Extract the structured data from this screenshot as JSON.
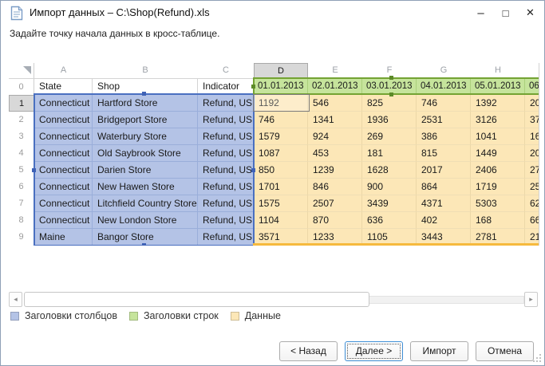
{
  "window": {
    "title": "Импорт данных – C:\\Shop(Refund).xls",
    "subtitle": "Задайте точку начала данных в кросс-таблице.",
    "controls": {
      "minimize": "–",
      "maximize": "□",
      "close": "✕"
    }
  },
  "grid": {
    "column_letters": [
      "A",
      "B",
      "C",
      "D",
      "E",
      "F",
      "G",
      "H",
      ""
    ],
    "selected_column": "D",
    "selected_row": "1",
    "selected_cell": "D1",
    "rows": [
      {
        "num": "0",
        "cells": [
          "State",
          "Shop",
          "Indicator",
          "01.01.2013",
          "02.01.2013",
          "03.01.2013",
          "04.01.2013",
          "05.01.2013",
          "06"
        ]
      },
      {
        "num": "1",
        "cells": [
          "Connecticut",
          "Hartford Store",
          "Refund, USD",
          "1192",
          "546",
          "825",
          "746",
          "1392",
          "20"
        ]
      },
      {
        "num": "2",
        "cells": [
          "Connecticut",
          "Bridgeport Store",
          "Refund, USD",
          "746",
          "1341",
          "1936",
          "2531",
          "3126",
          "37"
        ]
      },
      {
        "num": "3",
        "cells": [
          "Connecticut",
          "Waterbury Store",
          "Refund, USD",
          "1579",
          "924",
          "269",
          "386",
          "1041",
          "16"
        ]
      },
      {
        "num": "4",
        "cells": [
          "Connecticut",
          "Old Saybrook Store",
          "Refund, USD",
          "1087",
          "453",
          "181",
          "815",
          "1449",
          "20"
        ]
      },
      {
        "num": "5",
        "cells": [
          "Connecticut",
          "Darien Store",
          "Refund, USD",
          "850",
          "1239",
          "1628",
          "2017",
          "2406",
          "27"
        ]
      },
      {
        "num": "6",
        "cells": [
          "Connecticut",
          "New Hawen Store",
          "Refund, USD",
          "1701",
          "846",
          "900",
          "864",
          "1719",
          "25"
        ]
      },
      {
        "num": "7",
        "cells": [
          "Connecticut",
          "Litchfield Country Store",
          "Refund, USD",
          "1575",
          "2507",
          "3439",
          "4371",
          "5303",
          "62"
        ]
      },
      {
        "num": "8",
        "cells": [
          "Connecticut",
          "New London Store",
          "Refund, USD",
          "1104",
          "870",
          "636",
          "402",
          "168",
          "66"
        ]
      },
      {
        "num": "9",
        "cells": [
          "Maine",
          "Bangor Store",
          "Refund, USD",
          "3571",
          "1233",
          "1105",
          "3443",
          "2781",
          "21"
        ]
      }
    ],
    "region_colors": {
      "column_headers": "#b4c3e6",
      "row_headers": "#c6e49c",
      "data": "#fce7b7",
      "blue_border": "#4a70c0",
      "green_border": "#74a333",
      "data_bottom_border": "#f6ba3e"
    }
  },
  "scrollbar": {
    "left_arrow": "◂",
    "right_arrow": "▸"
  },
  "legend": {
    "items": [
      {
        "label": "Заголовки столбцов",
        "color": "#b4c3e6"
      },
      {
        "label": "Заголовки строк",
        "color": "#c6e49c"
      },
      {
        "label": "Данные",
        "color": "#fce7b7"
      }
    ]
  },
  "buttons": {
    "back": "< Назад",
    "next": "Далее >",
    "import": "Импорт",
    "cancel": "Отмена"
  }
}
